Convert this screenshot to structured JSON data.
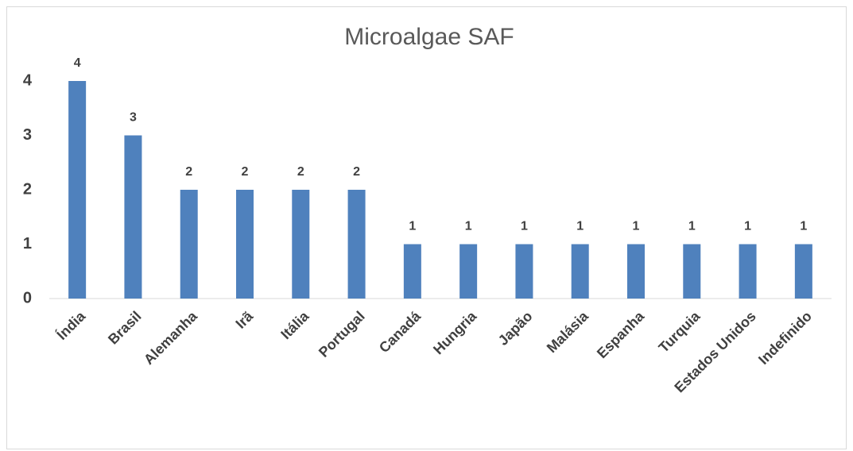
{
  "chart_data": {
    "type": "bar",
    "title": "Microalgae SAF",
    "categories": [
      "Índia",
      "Brasil",
      "Alemanha",
      "Irã",
      "Itália",
      "Portugal",
      "Canadá",
      "Hungria",
      "Japão",
      "Malásia",
      "Espanha",
      "Turquia",
      "Estados Unidos",
      "Indefinido"
    ],
    "values": [
      4,
      3,
      2,
      2,
      2,
      2,
      1,
      1,
      1,
      1,
      1,
      1,
      1,
      1
    ],
    "color": "#4f81bd",
    "ylim": [
      0,
      4
    ],
    "yticks": [
      0,
      1,
      2,
      3,
      4
    ],
    "grid": false
  }
}
